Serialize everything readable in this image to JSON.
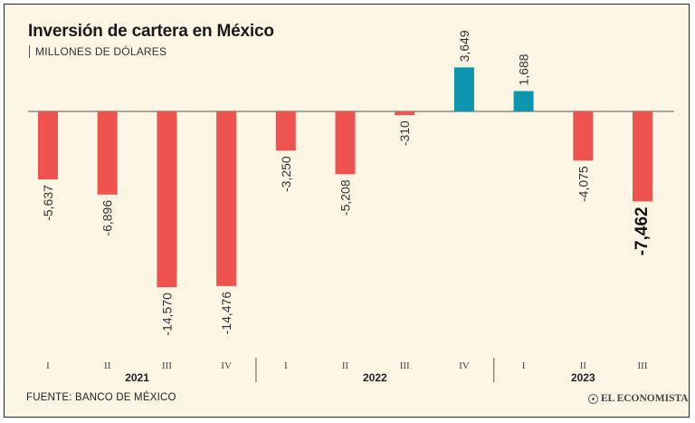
{
  "header": {
    "title": "Inversión de cartera en México",
    "subtitle": "MILLONES DE DÓLARES"
  },
  "footer": {
    "source": "FUENTE: BANCO DE MÉXICO",
    "brand": "EL ECONOMISTA",
    "brand_icon": "globe-icon"
  },
  "colors": {
    "negative": "#ef5350",
    "positive": "#0d95ad",
    "background": "#fdf6e4"
  },
  "chart_data": {
    "type": "bar",
    "title": "Inversión de cartera en México",
    "ylabel": "MILLONES DE DÓLARES",
    "xlabel": "",
    "ylim": [
      -15500,
      3700
    ],
    "grid": false,
    "categories": [
      "I",
      "II",
      "III",
      "IV",
      "I",
      "II",
      "III",
      "IV",
      "I",
      "II",
      "III"
    ],
    "values": [
      -5637,
      -6896,
      -14570,
      -14476,
      -3250,
      -5208,
      -310,
      3649,
      1688,
      -4075,
      -7462
    ],
    "labels": [
      "-5,637",
      "-6,896",
      "-14,570",
      "-14,476",
      "-3,250",
      "-5,208",
      "-310",
      "3,649",
      "1,688",
      "-4,075",
      "-7,462"
    ],
    "highlight_index": 10,
    "years": [
      {
        "label": "2021",
        "start": 0,
        "end": 3
      },
      {
        "label": "2022",
        "start": 4,
        "end": 7
      },
      {
        "label": "2023",
        "start": 8,
        "end": 10
      }
    ]
  }
}
